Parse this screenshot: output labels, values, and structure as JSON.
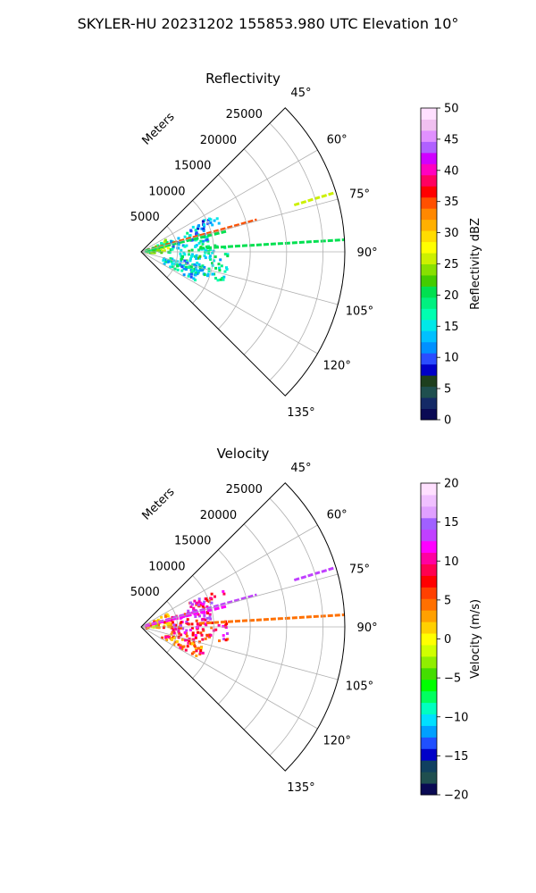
{
  "figure_title": "SKYLER-HU  20231202  155853.980 UTC Elevation 10°",
  "chart_data": [
    {
      "type": "polar-ppi",
      "title": "Reflectivity",
      "range_label": "Meters",
      "range_ticks": [
        5000,
        10000,
        15000,
        20000,
        25000
      ],
      "range_tick_labels": [
        "5000",
        "10000",
        "15000",
        "20000",
        "25000"
      ],
      "rmax": 28000,
      "azimuth_range": [
        45,
        135
      ],
      "azimuth_ticks": [
        45,
        60,
        75,
        90,
        105,
        120,
        135
      ],
      "azimuth_tick_labels": [
        "45°",
        "60°",
        "75°",
        "90°",
        "105°",
        "120°",
        "135°"
      ],
      "grid": true,
      "colorbar": {
        "label": "Reflectivity dBZ",
        "min": 0,
        "max": 50,
        "ticks": [
          0,
          5,
          10,
          15,
          20,
          25,
          30,
          35,
          40,
          45,
          50
        ],
        "tick_labels": [
          "0",
          "5",
          "10",
          "15",
          "20",
          "25",
          "30",
          "35",
          "40",
          "45",
          "50"
        ],
        "colormap": "NWSRef"
      },
      "echo_regions": [
        {
          "az_range": [
            60,
            90
          ],
          "r_range": [
            500,
            4000
          ],
          "value": 22
        },
        {
          "az_range": [
            66,
            84
          ],
          "r_range": [
            4000,
            9500
          ],
          "value": 14
        },
        {
          "az_range": [
            84,
            110
          ],
          "r_range": [
            5000,
            12000
          ],
          "value": 17
        },
        {
          "az_range": [
            100,
            118
          ],
          "r_range": [
            3000,
            9000
          ],
          "value": 15
        },
        {
          "az_range": [
            62,
            70
          ],
          "r_range": [
            7000,
            12500
          ],
          "value": 12
        }
      ],
      "spokes": [
        {
          "az": 74.5,
          "r_range": [
            500,
            16500
          ],
          "value": 34
        },
        {
          "az": 76.5,
          "r_range": [
            500,
            12000
          ],
          "value": 20
        },
        {
          "az": 86.6,
          "r_range": [
            8000,
            28000
          ],
          "value": 20
        },
        {
          "az": 73.0,
          "r_range": [
            22000,
            27800
          ],
          "value": 26
        }
      ]
    },
    {
      "type": "polar-ppi",
      "title": "Velocity",
      "range_label": "Meters",
      "range_ticks": [
        5000,
        10000,
        15000,
        20000,
        25000
      ],
      "range_tick_labels": [
        "5000",
        "10000",
        "15000",
        "20000",
        "25000"
      ],
      "rmax": 28000,
      "azimuth_range": [
        45,
        135
      ],
      "azimuth_ticks": [
        45,
        60,
        75,
        90,
        105,
        120,
        135
      ],
      "azimuth_tick_labels": [
        "45°",
        "60°",
        "75°",
        "90°",
        "105°",
        "120°",
        "135°"
      ],
      "grid": true,
      "colorbar": {
        "label": "Velocity (m/s)",
        "min": -20,
        "max": 20,
        "ticks": [
          -20,
          -15,
          -10,
          -5,
          0,
          5,
          10,
          15,
          20
        ],
        "tick_labels": [
          "−20",
          "−15",
          "−10",
          "−5",
          "0",
          "5",
          "10",
          "15",
          "20"
        ],
        "colormap": "NWSVel"
      },
      "echo_regions": [
        {
          "az_range": [
            60,
            90
          ],
          "r_range": [
            500,
            4000
          ],
          "value": 2
        },
        {
          "az_range": [
            66,
            84
          ],
          "r_range": [
            4000,
            9500
          ],
          "value": 10
        },
        {
          "az_range": [
            84,
            100
          ],
          "r_range": [
            4000,
            12000
          ],
          "value": 9
        },
        {
          "az_range": [
            100,
            118
          ],
          "r_range": [
            3000,
            9000
          ],
          "value": 6
        },
        {
          "az_range": [
            62,
            70
          ],
          "r_range": [
            7000,
            12500
          ],
          "value": 10
        }
      ],
      "spokes": [
        {
          "az": 74.5,
          "r_range": [
            500,
            16500
          ],
          "value": 14
        },
        {
          "az": 76.5,
          "r_range": [
            500,
            12000
          ],
          "value": 12
        },
        {
          "az": 86.6,
          "r_range": [
            8000,
            28000
          ],
          "value": 5
        },
        {
          "az": 73.0,
          "r_range": [
            22000,
            27800
          ],
          "value": 13
        }
      ]
    }
  ]
}
